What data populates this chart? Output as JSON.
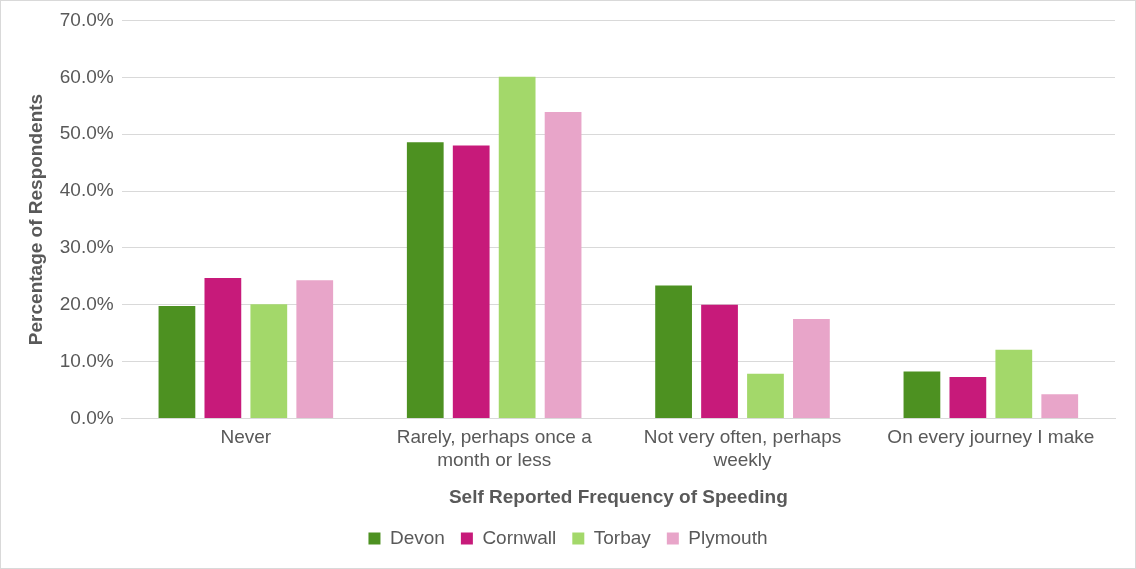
{
  "chart_data": {
    "type": "bar",
    "xlabel": "Self Reported Frequency of Speeding",
    "ylabel": "Percentage of Respondents",
    "categories": [
      "Never",
      "Rarely, perhaps once a month or less",
      "Not very often, perhaps weekly",
      "On every journey I make"
    ],
    "series": [
      {
        "name": "Devon",
        "color": "#4d9121",
        "values": [
          19.8,
          48.6,
          23.4,
          8.3
        ]
      },
      {
        "name": "Cornwall",
        "color": "#c71a7a",
        "values": [
          24.7,
          48.0,
          20.0,
          7.3
        ]
      },
      {
        "name": "Torbay",
        "color": "#a3d86a",
        "values": [
          20.1,
          60.1,
          7.9,
          12.1
        ]
      },
      {
        "name": "Plymouth",
        "color": "#e8a5c9",
        "values": [
          24.3,
          53.9,
          17.5,
          4.3
        ]
      }
    ],
    "ylim": [
      0,
      70
    ],
    "yticks": [
      {
        "value": 0,
        "label": "0.0%"
      },
      {
        "value": 10,
        "label": "10.0%"
      },
      {
        "value": 20,
        "label": "20.0%"
      },
      {
        "value": 30,
        "label": "30.0%"
      },
      {
        "value": 40,
        "label": "40.0%"
      },
      {
        "value": 50,
        "label": "50.0%"
      },
      {
        "value": 60,
        "label": "60.0%"
      },
      {
        "value": 70,
        "label": "70.0%"
      }
    ],
    "grid": "y",
    "legend": "bottom"
  }
}
